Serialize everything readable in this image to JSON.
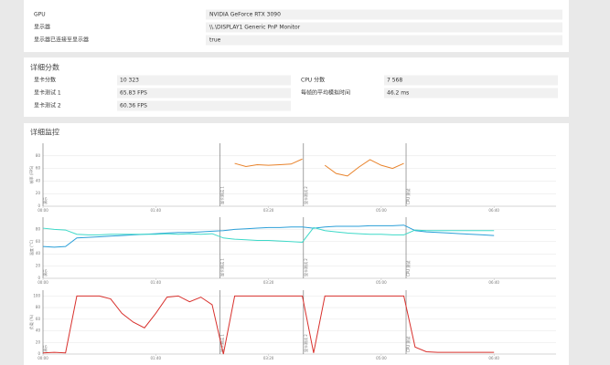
{
  "system_info": {
    "rows": [
      {
        "label": "GPU",
        "value": "NVIDIA GeForce RTX 3090"
      },
      {
        "label": "显示器",
        "value": "\\\\.\\DISPLAY1 Generic PnP Monitor"
      },
      {
        "label": "显示器已连接至显示器",
        "value": "true"
      }
    ]
  },
  "detailed_scores": {
    "title": "详细分数",
    "left": [
      {
        "label": "显卡分数",
        "value": "10 323"
      },
      {
        "label": "显卡测试 1",
        "value": "65.83 FPS"
      },
      {
        "label": "显卡测试 2",
        "value": "60.36 FPS"
      }
    ],
    "right": [
      {
        "label": "CPU 分数",
        "value": "7 568"
      },
      {
        "label": "每帧的平均模拟时间",
        "value": "46.2 ms"
      }
    ]
  },
  "monitoring": {
    "title": "详细监控"
  },
  "chart_data": [
    {
      "type": "line",
      "ylabel": "帧率 (FPS)",
      "xlim": [
        0,
        455
      ],
      "ylim": [
        0,
        100
      ],
      "yticks": [
        0,
        20,
        40,
        60,
        80
      ],
      "grid": true,
      "xticks": [
        {
          "value": 0,
          "label": "00:00"
        },
        {
          "value": 100,
          "label": "01:40"
        },
        {
          "value": 200,
          "label": "03:20"
        },
        {
          "value": 300,
          "label": "05:00"
        },
        {
          "value": 400,
          "label": "06:40"
        }
      ],
      "annotations": [
        {
          "x": 0,
          "text": "演示"
        },
        {
          "x": 157,
          "text": "显卡测试 1"
        },
        {
          "x": 231,
          "text": "显卡测试 2"
        },
        {
          "x": 322,
          "text": "CPU 测试"
        }
      ],
      "x": [
        0,
        10,
        20,
        30,
        40,
        50,
        60,
        70,
        80,
        90,
        100,
        110,
        120,
        130,
        140,
        150,
        160,
        170,
        180,
        190,
        200,
        210,
        220,
        230,
        240,
        250,
        260,
        270,
        280,
        290,
        300,
        310,
        320,
        330,
        340,
        350,
        360,
        370,
        380,
        390,
        400
      ],
      "series": [
        {
          "color": "#e8822a",
          "values": [
            null,
            null,
            null,
            null,
            null,
            null,
            null,
            null,
            null,
            null,
            null,
            null,
            null,
            null,
            null,
            null,
            null,
            68,
            63,
            66,
            65,
            66,
            67,
            75,
            null,
            65,
            52,
            48,
            62,
            74,
            65,
            60,
            68,
            null,
            null,
            null,
            null,
            null,
            null,
            null,
            null
          ]
        }
      ]
    },
    {
      "type": "line",
      "ylabel": "温度 (°C)",
      "xlim": [
        0,
        455
      ],
      "ylim": [
        0,
        100
      ],
      "yticks": [
        0,
        20,
        40,
        60,
        80
      ],
      "grid": true,
      "xticks": [
        {
          "value": 0,
          "label": "00:00"
        },
        {
          "value": 100,
          "label": "01:40"
        },
        {
          "value": 200,
          "label": "03:20"
        },
        {
          "value": 300,
          "label": "05:00"
        },
        {
          "value": 400,
          "label": "06:40"
        }
      ],
      "annotations": [
        {
          "x": 0,
          "text": "演示"
        },
        {
          "x": 157,
          "text": "显卡测试 1"
        },
        {
          "x": 231,
          "text": "显卡测试 2"
        },
        {
          "x": 322,
          "text": "CPU 测试"
        }
      ],
      "x": [
        0,
        10,
        20,
        30,
        40,
        50,
        60,
        70,
        80,
        90,
        100,
        110,
        120,
        130,
        140,
        150,
        160,
        170,
        180,
        190,
        200,
        210,
        220,
        230,
        240,
        250,
        260,
        270,
        280,
        290,
        300,
        310,
        320,
        330,
        340,
        350,
        360,
        370,
        380,
        390,
        400
      ],
      "series": [
        {
          "color": "#2a9fd8",
          "values": [
            52,
            51,
            52,
            66,
            67,
            68,
            69,
            70,
            71,
            72,
            73,
            74,
            75,
            75,
            76,
            77,
            78,
            80,
            81,
            82,
            83,
            83,
            84,
            84,
            82,
            84,
            85,
            85,
            85,
            86,
            86,
            86,
            87,
            78,
            76,
            75,
            74,
            73,
            72,
            71,
            70
          ]
        },
        {
          "color": "#3dd9c8",
          "values": [
            82,
            80,
            79,
            72,
            71,
            71,
            72,
            72,
            72,
            72,
            72,
            73,
            72,
            73,
            72,
            73,
            66,
            64,
            63,
            62,
            62,
            61,
            60,
            59,
            83,
            78,
            76,
            74,
            73,
            72,
            72,
            71,
            71,
            79,
            78,
            78,
            78,
            78,
            78,
            78,
            78
          ]
        }
      ]
    },
    {
      "type": "line",
      "ylabel": "负载 (%)",
      "xlim": [
        0,
        455
      ],
      "ylim": [
        0,
        110
      ],
      "yticks": [
        0,
        20,
        40,
        60,
        80,
        100
      ],
      "grid": true,
      "xticks": [
        {
          "value": 0,
          "label": "00:00"
        },
        {
          "value": 100,
          "label": "01:40"
        },
        {
          "value": 200,
          "label": "03:20"
        },
        {
          "value": 300,
          "label": "05:00"
        },
        {
          "value": 400,
          "label": "06:40"
        }
      ],
      "annotations": [
        {
          "x": 0,
          "text": "演示"
        },
        {
          "x": 157,
          "text": "显卡测试 1"
        },
        {
          "x": 231,
          "text": "显卡测试 2"
        },
        {
          "x": 322,
          "text": "CPU 测试"
        }
      ],
      "x": [
        0,
        10,
        20,
        30,
        40,
        50,
        60,
        70,
        80,
        90,
        100,
        110,
        120,
        130,
        140,
        150,
        160,
        170,
        180,
        190,
        200,
        210,
        220,
        230,
        240,
        250,
        260,
        270,
        280,
        290,
        300,
        310,
        320,
        330,
        340,
        350,
        360,
        370,
        380,
        390,
        400
      ],
      "series": [
        {
          "color": "#d8302c",
          "values": [
            2,
            3,
            2,
            100,
            100,
            100,
            95,
            70,
            55,
            45,
            70,
            98,
            100,
            90,
            98,
            85,
            0,
            100,
            100,
            100,
            100,
            100,
            100,
            100,
            2,
            100,
            100,
            100,
            100,
            100,
            100,
            100,
            100,
            12,
            4,
            3,
            3,
            3,
            3,
            3,
            3
          ]
        }
      ]
    }
  ]
}
